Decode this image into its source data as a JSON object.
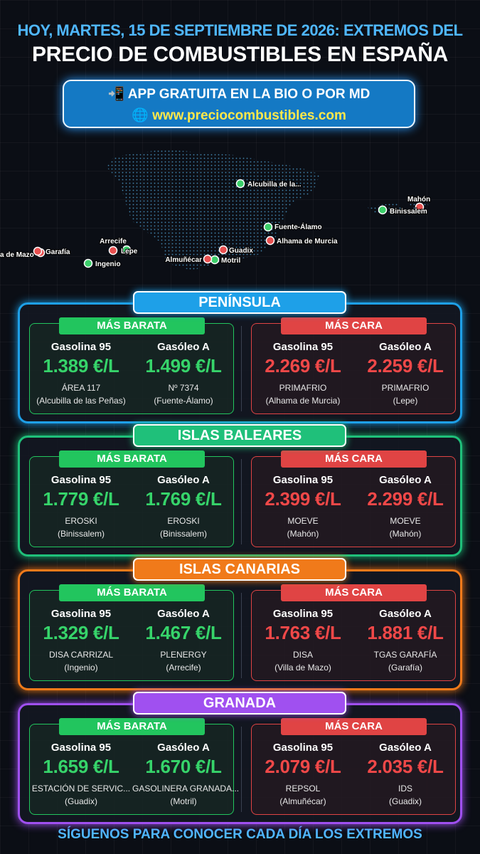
{
  "header": {
    "line1": "HOY, MARTES, 15 DE SEPTIEMBRE DE 2026: EXTREMOS DEL",
    "line2": "PRECIO DE COMBUSTIBLES EN ESPAÑA"
  },
  "banner": {
    "app": "📲 APP GRATUITA EN LA BIO O POR MD",
    "url": "🌐 www.preciocombustibles.com"
  },
  "map": {
    "markers": [
      {
        "label": "Alcubilla de la...",
        "color": "#3ccf6a"
      },
      {
        "label": "Mahón",
        "color": "#e85050"
      },
      {
        "label": "Binissalem",
        "color": "#3ccf6a"
      },
      {
        "label": "Fuente-Álamo",
        "color": "#3ccf6a"
      },
      {
        "label": "Alhama de Murcia",
        "color": "#e85050"
      },
      {
        "label": "Guadix",
        "color": "#e85050"
      },
      {
        "label": "Motril",
        "color": "#3ccf6a"
      },
      {
        "label": "Almuñécar",
        "color": "#e85050"
      },
      {
        "label": "Arrecife",
        "color": "#e85050"
      },
      {
        "label": "Lepe",
        "color": "#3ccf6a"
      },
      {
        "label": "Garafía",
        "color": "#e85050"
      },
      {
        "label": "a de Mazo",
        "color": "#e85050"
      },
      {
        "label": "Ingenio",
        "color": "#3ccf6a"
      }
    ]
  },
  "sections": [
    {
      "title": "PENÍNSULA",
      "color": "#1ea0e8",
      "cheap": {
        "label": "MÁS BARATA",
        "items": [
          {
            "fuel": "Gasolina 95",
            "price": "1.389 €/L",
            "station": "ÁREA 117",
            "place": "(Alcubilla de las Peñas)"
          },
          {
            "fuel": "Gasóleo A",
            "price": "1.499 €/L",
            "station": "Nº 7374",
            "place": "(Fuente-Álamo)"
          }
        ]
      },
      "expensive": {
        "label": "MÁS CARA",
        "items": [
          {
            "fuel": "Gasolina 95",
            "price": "2.269 €/L",
            "station": "PRIMAFRIO",
            "place": "(Alhama de Murcia)"
          },
          {
            "fuel": "Gasóleo A",
            "price": "2.259 €/L",
            "station": "PRIMAFRIO",
            "place": "(Lepe)"
          }
        ]
      }
    },
    {
      "title": "ISLAS BALEARES",
      "color": "#1fc07a",
      "cheap": {
        "label": "MÁS BARATA",
        "items": [
          {
            "fuel": "Gasolina 95",
            "price": "1.779 €/L",
            "station": "EROSKI",
            "place": "(Binissalem)"
          },
          {
            "fuel": "Gasóleo A",
            "price": "1.769 €/L",
            "station": "EROSKI",
            "place": "(Binissalem)"
          }
        ]
      },
      "expensive": {
        "label": "MÁS CARA",
        "items": [
          {
            "fuel": "Gasolina 95",
            "price": "2.399 €/L",
            "station": "MOEVE",
            "place": "(Mahón)"
          },
          {
            "fuel": "Gasóleo A",
            "price": "2.299 €/L",
            "station": "MOEVE",
            "place": "(Mahón)"
          }
        ]
      }
    },
    {
      "title": "ISLAS CANARIAS",
      "color": "#f07a1a",
      "cheap": {
        "label": "MÁS BARATA",
        "items": [
          {
            "fuel": "Gasolina 95",
            "price": "1.329 €/L",
            "station": "DISA CARRIZAL",
            "place": "(Ingenio)"
          },
          {
            "fuel": "Gasóleo A",
            "price": "1.467 €/L",
            "station": "PLENERGY",
            "place": "(Arrecife)"
          }
        ]
      },
      "expensive": {
        "label": "MÁS CARA",
        "items": [
          {
            "fuel": "Gasolina 95",
            "price": "1.763 €/L",
            "station": "DISA",
            "place": "(Villa de Mazo)"
          },
          {
            "fuel": "Gasóleo A",
            "price": "1.881 €/L",
            "station": "TGAS GARAFÍA",
            "place": "(Garafía)"
          }
        ]
      }
    },
    {
      "title": "GRANADA",
      "color": "#a050f0",
      "cheap": {
        "label": "MÁS BARATA",
        "items": [
          {
            "fuel": "Gasolina 95",
            "price": "1.659 €/L",
            "station": "ESTACIÓN DE SERVIC...",
            "place": "(Guadix)"
          },
          {
            "fuel": "Gasóleo A",
            "price": "1.670 €/L",
            "station": "GASOLINERA GRANADA...",
            "place": "(Motril)"
          }
        ]
      },
      "expensive": {
        "label": "MÁS CARA",
        "items": [
          {
            "fuel": "Gasolina 95",
            "price": "2.079 €/L",
            "station": "REPSOL",
            "place": "(Almuñécar)"
          },
          {
            "fuel": "Gasóleo A",
            "price": "2.035 €/L",
            "station": "IDS",
            "place": "(Guadix)"
          }
        ]
      }
    }
  ],
  "footer": "SÍGUENOS PARA CONOCER CADA DÍA LOS EXTREMOS"
}
